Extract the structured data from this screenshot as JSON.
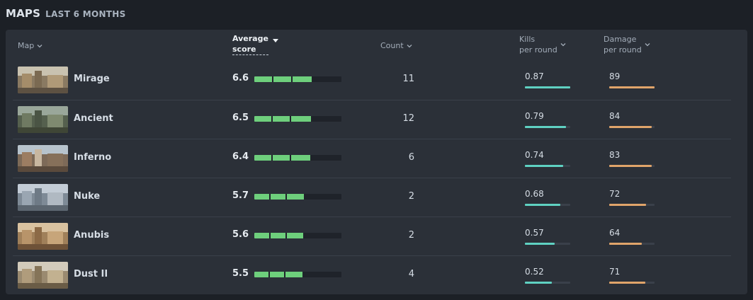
{
  "section": {
    "title": "MAPS",
    "subtitle": "LAST 6 MONTHS"
  },
  "columns": {
    "map": "Map",
    "avg_score_line1": "Average",
    "avg_score_line2": "score",
    "count": "Count",
    "kpr_line1": "Kills",
    "kpr_line2": "per round",
    "dpr_line1": "Damage",
    "dpr_line2": "per round"
  },
  "sort": {
    "column": "avg_score",
    "direction": "descending"
  },
  "colors": {
    "score_bar": "#6ecf7c",
    "kills_bar": "#5fd1c2",
    "damage_bar": "#e0a46a"
  },
  "rows": [
    {
      "map": "Mirage",
      "thumb_icon": "mirage-thumbnail-icon",
      "avg_score": "6.6",
      "score_fraction": 0.66,
      "count": "11",
      "kpr": "0.87",
      "kpr_fraction": 1.0,
      "dpr": "89",
      "dpr_fraction": 1.0
    },
    {
      "map": "Ancient",
      "thumb_icon": "ancient-thumbnail-icon",
      "avg_score": "6.5",
      "score_fraction": 0.65,
      "count": "12",
      "kpr": "0.79",
      "kpr_fraction": 0.91,
      "dpr": "84",
      "dpr_fraction": 0.94
    },
    {
      "map": "Inferno",
      "thumb_icon": "inferno-thumbnail-icon",
      "avg_score": "6.4",
      "score_fraction": 0.64,
      "count": "6",
      "kpr": "0.74",
      "kpr_fraction": 0.85,
      "dpr": "83",
      "dpr_fraction": 0.93
    },
    {
      "map": "Nuke",
      "thumb_icon": "nuke-thumbnail-icon",
      "avg_score": "5.7",
      "score_fraction": 0.57,
      "count": "2",
      "kpr": "0.68",
      "kpr_fraction": 0.78,
      "dpr": "72",
      "dpr_fraction": 0.81
    },
    {
      "map": "Anubis",
      "thumb_icon": "anubis-thumbnail-icon",
      "avg_score": "5.6",
      "score_fraction": 0.56,
      "count": "2",
      "kpr": "0.57",
      "kpr_fraction": 0.66,
      "dpr": "64",
      "dpr_fraction": 0.72
    },
    {
      "map": "Dust II",
      "thumb_icon": "dust2-thumbnail-icon",
      "avg_score": "5.5",
      "score_fraction": 0.55,
      "count": "4",
      "kpr": "0.52",
      "kpr_fraction": 0.6,
      "dpr": "71",
      "dpr_fraction": 0.8
    }
  ]
}
